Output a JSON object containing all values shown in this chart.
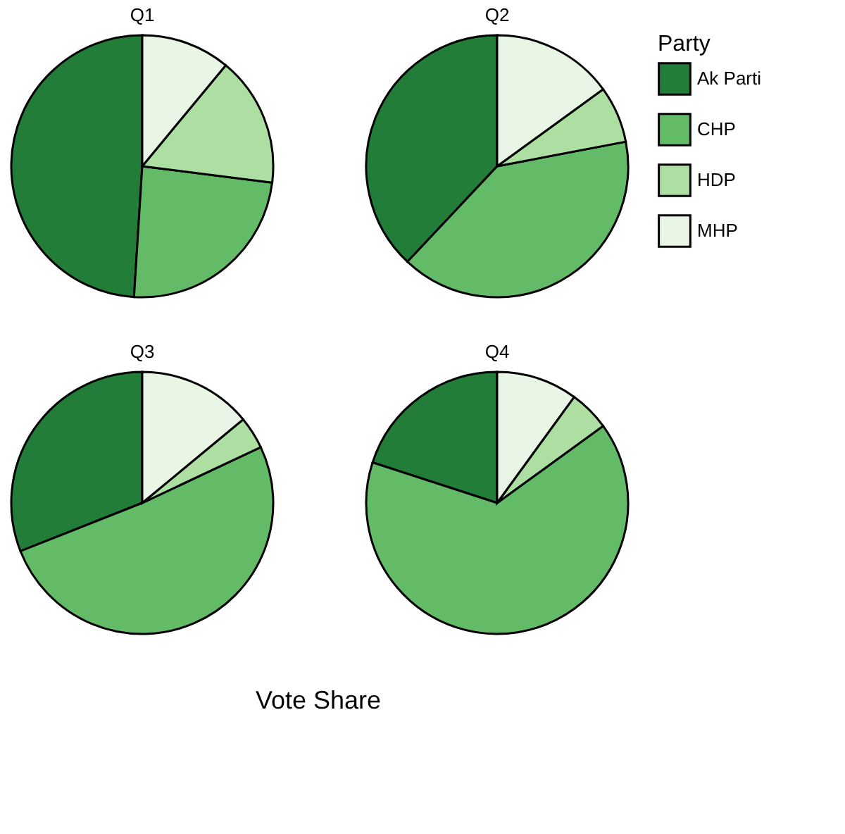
{
  "chart_data": [
    {
      "type": "pie",
      "title": "Q1",
      "categories": [
        "Ak Parti",
        "CHP",
        "HDP",
        "MHP"
      ],
      "values": [
        49,
        24,
        16,
        11
      ],
      "colors": [
        "#217d38",
        "#63bb67",
        "#addfa3",
        "#eaf6e5"
      ],
      "legend": "right",
      "legend_title": "Party"
    },
    {
      "type": "pie",
      "title": "Q2",
      "categories": [
        null,
        null,
        null,
        null
      ],
      "values": [
        38,
        40,
        7,
        15
      ],
      "colors": [
        "#217d38",
        "#63bb67",
        "#addfa3",
        "#eaf6e5"
      ]
    },
    {
      "type": "pie",
      "title": "Q3",
      "categories": [
        null,
        null,
        null,
        null
      ],
      "values": [
        31,
        51,
        4,
        14
      ],
      "colors": [
        "#217d38",
        "#63bb67",
        "#addfa3",
        "#eaf6e5"
      ],
      "xlabel": "Vote Share"
    },
    {
      "type": "pie",
      "title": "Q4",
      "categories": [
        null,
        null,
        null,
        null
      ],
      "values": [
        20,
        65,
        5,
        10
      ],
      "colors": [
        "#217d38",
        "#63bb67",
        "#addfa3",
        "#eaf6e5"
      ]
    }
  ]
}
